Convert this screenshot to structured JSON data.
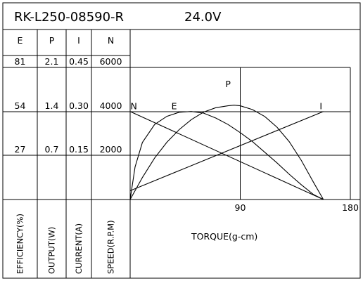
{
  "chart_data": {
    "type": "line",
    "title": "RK-L250-08590-R",
    "voltage": "24.0V",
    "xlabel": "TORQUE(g-cm)",
    "x_ticks": [
      90,
      180
    ],
    "xlim": [
      0,
      180
    ],
    "columns": [
      {
        "key": "E",
        "header": "E",
        "axis_label": "EFFICIENCY(%)",
        "ticks": [
          "81",
          "54",
          "27"
        ]
      },
      {
        "key": "P",
        "header": "P",
        "axis_label": "OUTPUT(W)",
        "ticks": [
          "2.1",
          "1.4",
          "0.7"
        ]
      },
      {
        "key": "I",
        "header": "I",
        "axis_label": "CURRENT(A)",
        "ticks": [
          "0.45",
          "0.30",
          "0.15"
        ]
      },
      {
        "key": "N",
        "header": "N",
        "axis_label": "SPEED(R.P.M)",
        "ticks": [
          "6000",
          "4000",
          "2000"
        ]
      }
    ],
    "series": [
      {
        "name": "N",
        "unit": "R.P.M",
        "ymax": 6000,
        "x": [
          0,
          158
        ],
        "y": [
          4000,
          0
        ]
      },
      {
        "name": "E",
        "unit": "%",
        "ymax": 81,
        "x": [
          0,
          4,
          10,
          20,
          30,
          40,
          50,
          60,
          70,
          80,
          90,
          100,
          110,
          120,
          130,
          140,
          150,
          158
        ],
        "y": [
          0,
          20,
          35,
          46,
          51,
          53.5,
          54,
          53,
          50,
          46,
          41,
          35.5,
          29,
          22.5,
          15.5,
          9,
          3,
          0
        ]
      },
      {
        "name": "P",
        "unit": "W",
        "ymax": 2.1,
        "x": [
          0,
          10,
          20,
          30,
          40,
          50,
          60,
          70,
          80,
          85,
          90,
          100,
          110,
          120,
          130,
          140,
          150,
          158
        ],
        "y": [
          0,
          0.35,
          0.66,
          0.91,
          1.11,
          1.27,
          1.39,
          1.46,
          1.49,
          1.5,
          1.49,
          1.43,
          1.32,
          1.15,
          0.92,
          0.62,
          0.27,
          0
        ]
      },
      {
        "name": "I",
        "unit": "A",
        "ymax": 0.45,
        "x": [
          0,
          158
        ],
        "y": [
          0.03,
          0.3
        ]
      }
    ],
    "series_labels": [
      {
        "text": "N",
        "x": 3,
        "y_frac": 0.667
      },
      {
        "text": "E",
        "x": 36,
        "y_frac": 0.667
      },
      {
        "text": "P",
        "x": 80,
        "y_frac": 0.835
      },
      {
        "text": "I",
        "x": 156,
        "y_frac": 0.667
      }
    ],
    "grid": true
  }
}
